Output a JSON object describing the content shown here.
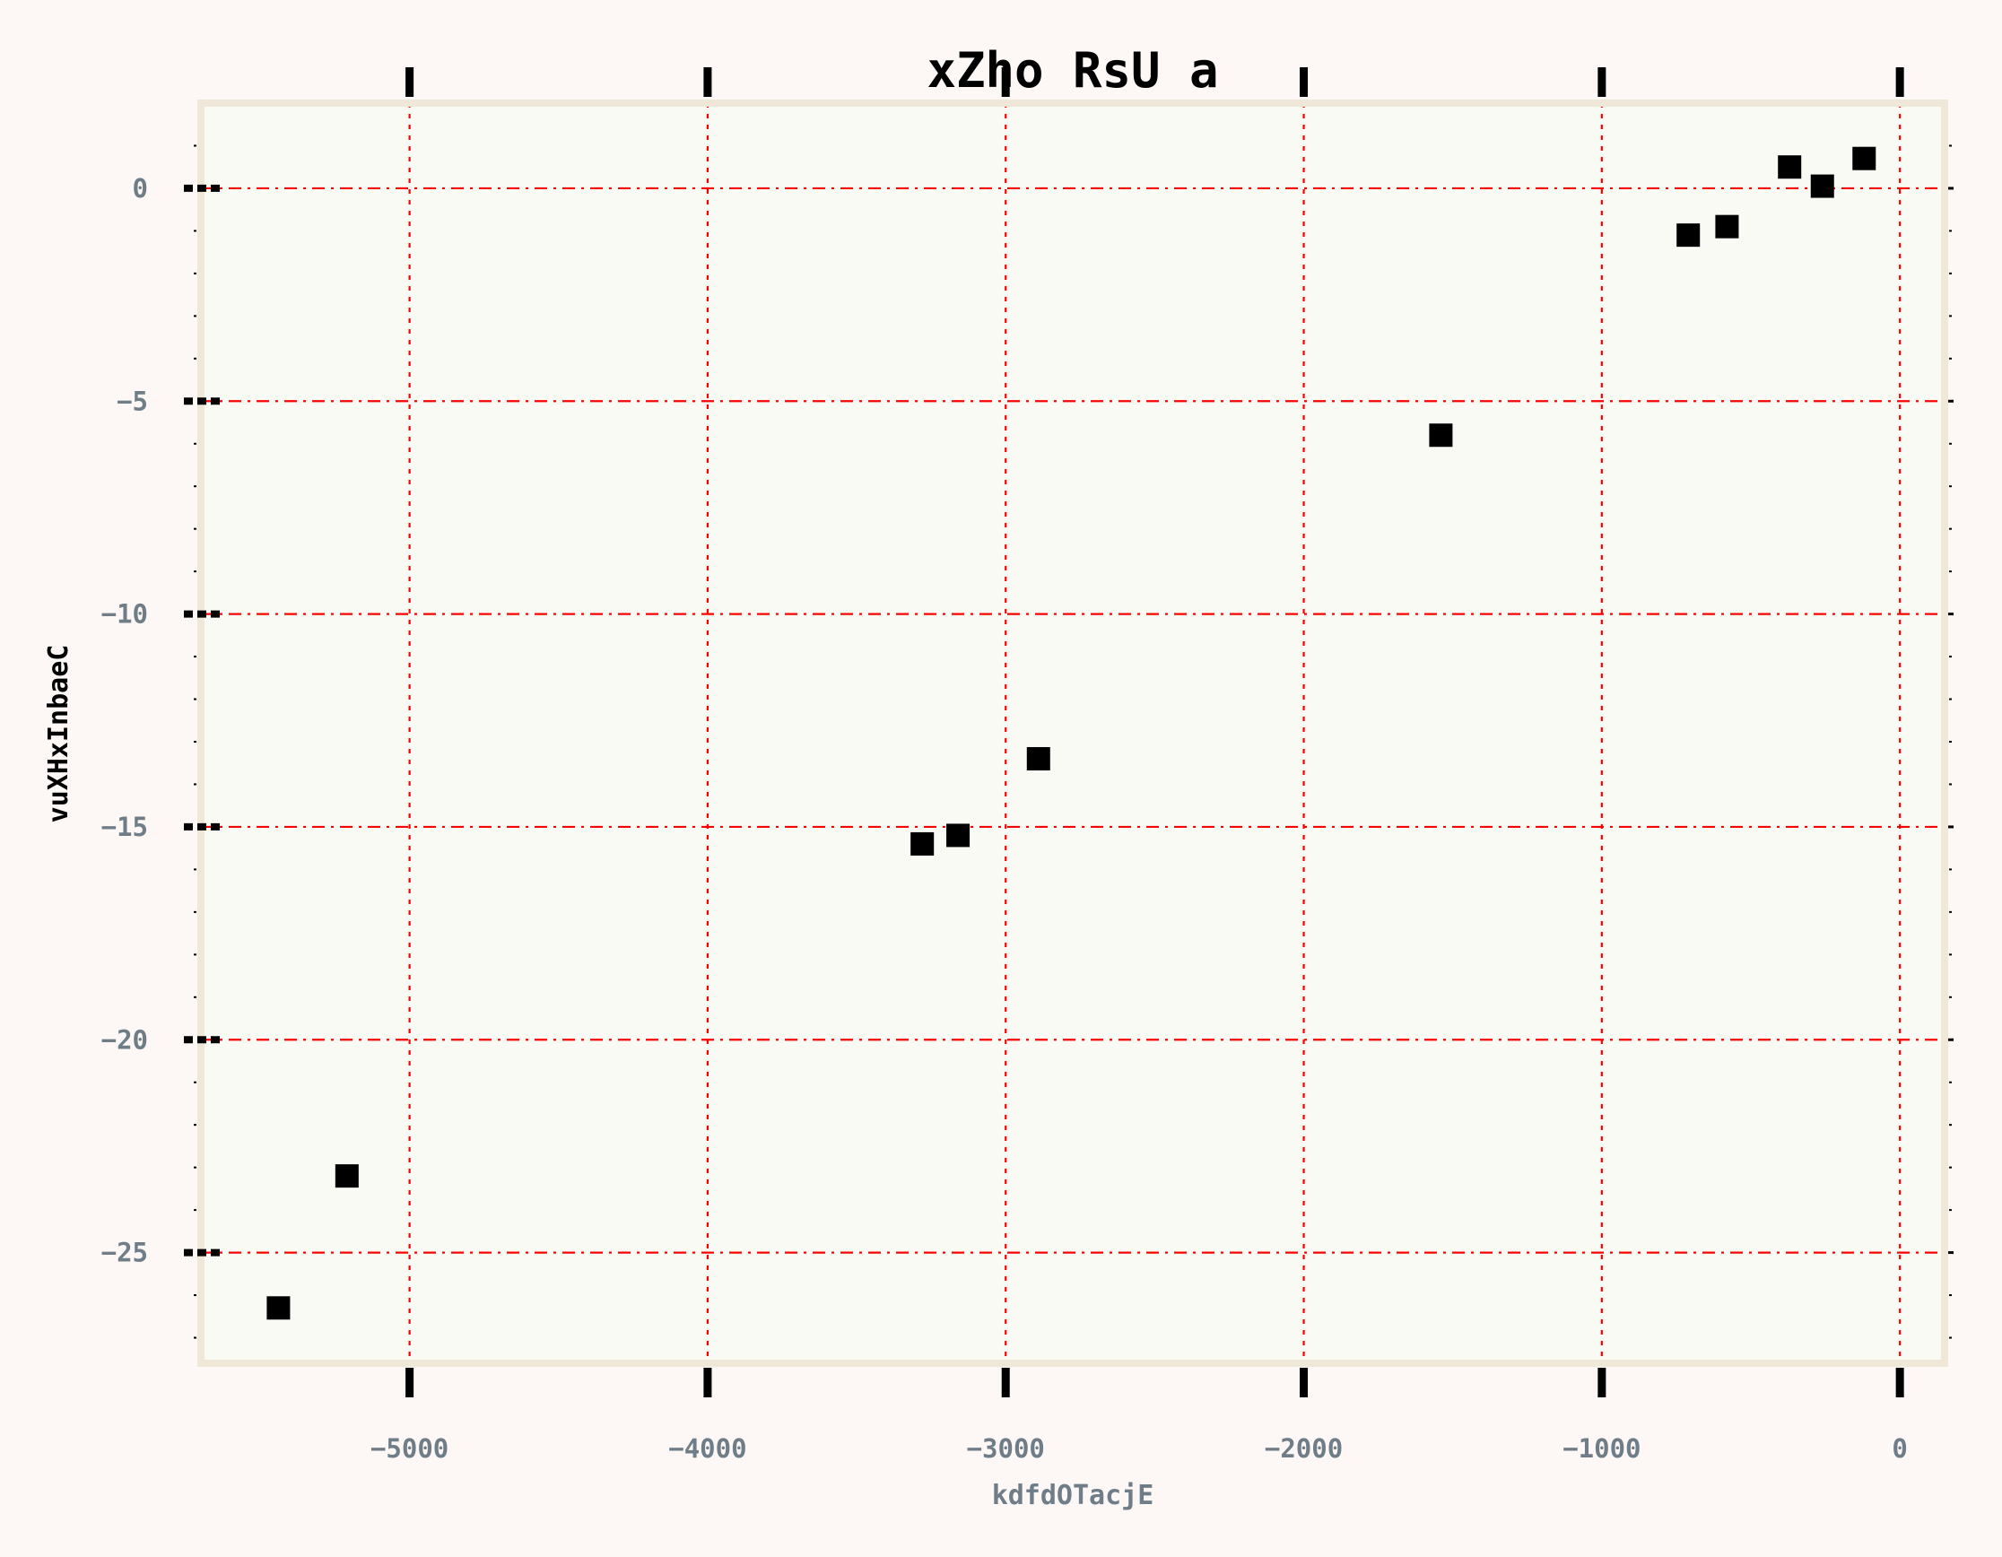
{
  "chart_data": {
    "type": "scatter",
    "title": "xZho RsU a",
    "xlabel": "kdfdOTacjE",
    "ylabel": "vuXHxInbaeC",
    "xlim": [
      -5700,
      150
    ],
    "ylim": [
      -27.6,
      2.0
    ],
    "xticks": [
      -5000,
      -4000,
      -3000,
      -2000,
      -1000,
      0
    ],
    "yticks": [
      0,
      -5,
      -10,
      -15,
      -20,
      -25
    ],
    "xtick_labels": [
      "−5000",
      "−4000",
      "−3000",
      "−2000",
      "−1000",
      "0"
    ],
    "ytick_labels": [
      "0",
      "−5",
      "−10",
      "−15",
      "−20",
      "−25"
    ],
    "grid": true,
    "series": [
      {
        "marker": "square",
        "x": [
          -5440,
          -5210,
          -3280,
          -3160,
          -2890,
          -1540,
          -710,
          -580,
          -370,
          -260,
          -120
        ],
        "y": [
          -26.3,
          -23.2,
          -15.4,
          -15.2,
          -13.4,
          -5.8,
          -1.1,
          -0.9,
          0.5,
          0.05,
          0.7
        ]
      }
    ],
    "colors": {
      "background": "#fdf8f6",
      "plot_background": "#fafaf4",
      "frame": "#efe8d8",
      "grid": "#ff0000",
      "marker": "#000000",
      "tick_label": "#6e7d87",
      "title": "#000000"
    }
  }
}
